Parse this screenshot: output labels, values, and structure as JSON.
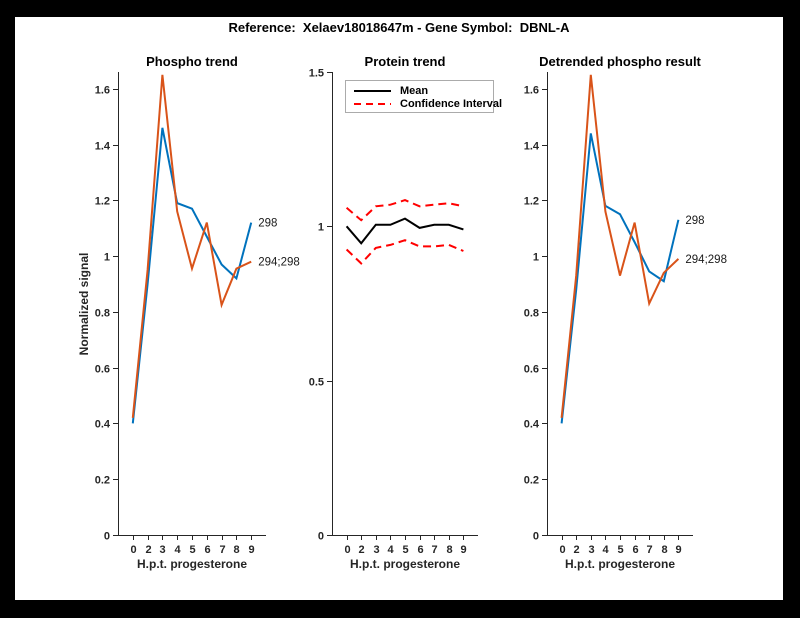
{
  "figure": {
    "title": "Reference:  Xelaev18018647m - Gene Symbol:  DBNL-A",
    "background_color": "#ffffff",
    "frame_color": "#000000",
    "axis_color": "#262626"
  },
  "chart_data": [
    {
      "type": "line",
      "title": "Phospho trend",
      "xlabel": "H.p.t. progesterone",
      "ylabel": "Normalized signal",
      "x_tick_labels": [
        "0",
        "2",
        "3",
        "4",
        "5",
        "6",
        "7",
        "8",
        "9"
      ],
      "yticks": [
        0,
        0.2,
        0.4,
        0.6,
        0.8,
        1,
        1.2,
        1.4,
        1.6
      ],
      "ylim": [
        0,
        1.66
      ],
      "grid": false,
      "series": [
        {
          "name": "298",
          "end_label": "298",
          "color": "#0072BD",
          "style": "solid",
          "values": [
            0.4,
            0.9,
            1.46,
            1.19,
            1.17,
            1.07,
            0.97,
            0.92,
            1.12
          ]
        },
        {
          "name": "294;298",
          "end_label": "294;298",
          "color": "#D95319",
          "style": "solid",
          "values": [
            0.42,
            0.95,
            1.65,
            1.16,
            0.955,
            1.12,
            0.825,
            0.955,
            0.98
          ]
        }
      ]
    },
    {
      "type": "line",
      "title": "Protein trend",
      "xlabel": "H.p.t. progesterone",
      "ylabel": "",
      "x_tick_labels": [
        "0",
        "2",
        "3",
        "4",
        "5",
        "6",
        "7",
        "8",
        "9"
      ],
      "yticks": [
        0,
        0.5,
        1,
        1.5
      ],
      "ylim": [
        0,
        1.5
      ],
      "grid": false,
      "legend": {
        "position": "northeast",
        "entries": [
          {
            "label": "Mean",
            "color": "#000000",
            "style": "solid"
          },
          {
            "label": "Confidence Interval",
            "color": "#ff0000",
            "style": "dashed"
          }
        ]
      },
      "series": [
        {
          "name": "Mean",
          "color": "#000000",
          "style": "solid",
          "values": [
            1.0,
            0.945,
            1.005,
            1.005,
            1.025,
            0.995,
            1.005,
            1.005,
            0.99
          ]
        },
        {
          "name": "Confidence Interval upper",
          "color": "#ff0000",
          "style": "dashed",
          "values": [
            1.06,
            1.02,
            1.065,
            1.07,
            1.085,
            1.065,
            1.07,
            1.075,
            1.065
          ]
        },
        {
          "name": "Confidence Interval lower",
          "color": "#ff0000",
          "style": "dashed",
          "values": [
            0.925,
            0.88,
            0.93,
            0.94,
            0.955,
            0.935,
            0.935,
            0.94,
            0.92
          ]
        }
      ]
    },
    {
      "type": "line",
      "title": "Detrended phospho result",
      "xlabel": "H.p.t. progesterone",
      "ylabel": "",
      "x_tick_labels": [
        "0",
        "2",
        "3",
        "4",
        "5",
        "6",
        "7",
        "8",
        "9"
      ],
      "yticks": [
        0,
        0.2,
        0.4,
        0.6,
        0.8,
        1,
        1.2,
        1.4,
        1.6
      ],
      "ylim": [
        0,
        1.66
      ],
      "grid": false,
      "series": [
        {
          "name": "298",
          "end_label": "298",
          "color": "#0072BD",
          "style": "solid",
          "values": [
            0.4,
            0.88,
            1.44,
            1.18,
            1.15,
            1.05,
            0.945,
            0.91,
            1.13
          ]
        },
        {
          "name": "294;298",
          "end_label": "294;298",
          "color": "#D95319",
          "style": "solid",
          "values": [
            0.42,
            0.93,
            1.65,
            1.16,
            0.93,
            1.12,
            0.83,
            0.94,
            0.99
          ]
        }
      ]
    }
  ]
}
